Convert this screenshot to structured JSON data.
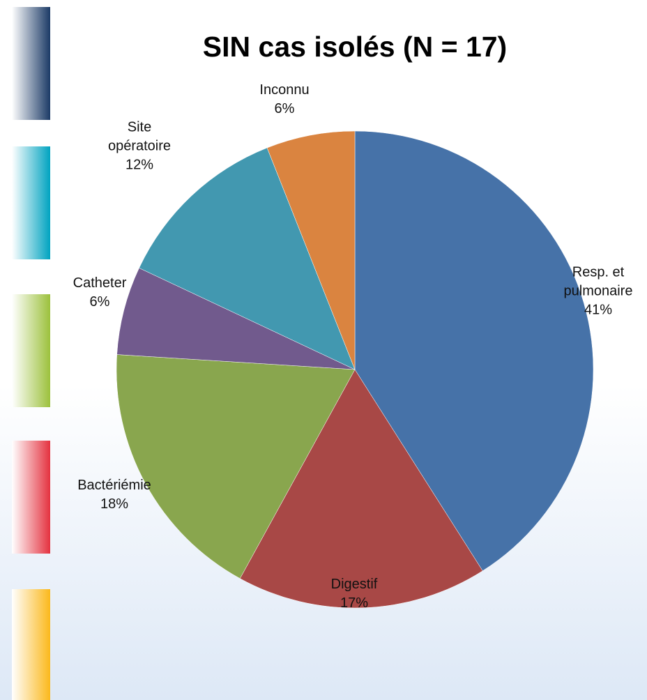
{
  "chart_data": {
    "type": "pie",
    "title": "SIN cas isolés (N = 17)",
    "categories": [
      "Resp. et pulmonaire",
      "Digestif",
      "Bactériémie",
      "Catheter",
      "Site opératoire",
      "Inconnu"
    ],
    "values": [
      41,
      17,
      18,
      6,
      12,
      6
    ],
    "value_labels": [
      "41%",
      "17%",
      "18%",
      "6%",
      "12%",
      "6%"
    ],
    "colors": [
      "#4672a8",
      "#a84846",
      "#89a64e",
      "#715a8d",
      "#4298b0",
      "#da8440"
    ]
  }
}
